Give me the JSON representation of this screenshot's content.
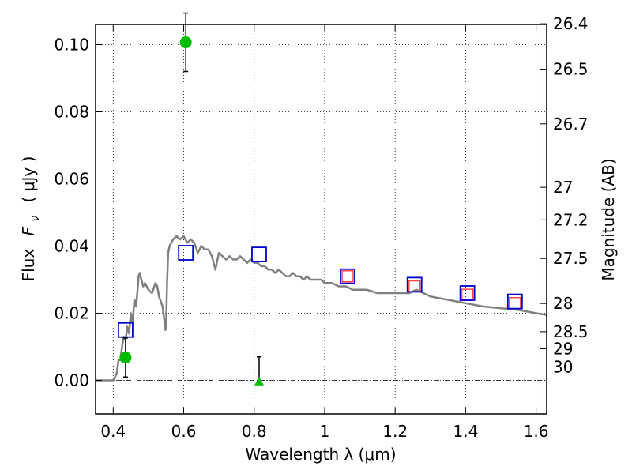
{
  "chart_data": {
    "type": "scatter",
    "xlabel": "Wavelength  λ (μm)",
    "ylabel_left": "Flux",
    "ylabel_left_symbol": "F",
    "ylabel_left_subscript": "ν",
    "ylabel_left_units": "( μJy )",
    "ylabel_right": "Magnitude (AB)",
    "xlim": [
      0.35,
      1.63
    ],
    "ylim": [
      -0.01,
      0.106
    ],
    "grid": true,
    "x_ticks": [
      {
        "value": 0.4,
        "label": "0.4"
      },
      {
        "value": 0.6,
        "label": "0.6"
      },
      {
        "value": 0.8,
        "label": "0.8"
      },
      {
        "value": 1.0,
        "label": "1"
      },
      {
        "value": 1.2,
        "label": "1.2"
      },
      {
        "value": 1.4,
        "label": "1.4"
      },
      {
        "value": 1.6,
        "label": "1.6"
      }
    ],
    "y_ticks": [
      {
        "value": 0.0,
        "label": "0.00"
      },
      {
        "value": 0.02,
        "label": "0.02"
      },
      {
        "value": 0.04,
        "label": "0.04"
      },
      {
        "value": 0.06,
        "label": "0.06"
      },
      {
        "value": 0.08,
        "label": "0.08"
      },
      {
        "value": 0.1,
        "label": "0.10"
      }
    ],
    "right_ticks": [
      {
        "flux": 0.1062,
        "label": "26.4"
      },
      {
        "flux": 0.0927,
        "label": "26.5"
      },
      {
        "flux": 0.0764,
        "label": "26.7"
      },
      {
        "flux": 0.0575,
        "label": "27"
      },
      {
        "flux": 0.0478,
        "label": "27.2"
      },
      {
        "flux": 0.0363,
        "label": "27.5"
      },
      {
        "flux": 0.0229,
        "label": "28"
      },
      {
        "flux": 0.0145,
        "label": "28.5"
      },
      {
        "flux": 0.0094,
        "label": "29"
      },
      {
        "flux": 0.004,
        "label": "30"
      }
    ],
    "sed_model": {
      "color": "#808080",
      "points": [
        [
          0.35,
          0.0
        ],
        [
          0.4,
          0.0
        ],
        [
          0.41,
          0.002
        ],
        [
          0.415,
          0.006
        ],
        [
          0.42,
          0.006
        ],
        [
          0.425,
          0.01
        ],
        [
          0.43,
          0.013
        ],
        [
          0.435,
          0.012
        ],
        [
          0.44,
          0.016
        ],
        [
          0.445,
          0.014
        ],
        [
          0.45,
          0.02
        ],
        [
          0.455,
          0.017
        ],
        [
          0.46,
          0.024
        ],
        [
          0.465,
          0.022
        ],
        [
          0.47,
          0.028
        ],
        [
          0.472,
          0.031
        ],
        [
          0.475,
          0.032
        ],
        [
          0.48,
          0.03
        ],
        [
          0.485,
          0.028
        ],
        [
          0.49,
          0.029
        ],
        [
          0.5,
          0.027
        ],
        [
          0.51,
          0.026
        ],
        [
          0.52,
          0.029
        ],
        [
          0.525,
          0.028
        ],
        [
          0.53,
          0.025
        ],
        [
          0.54,
          0.022
        ],
        [
          0.545,
          0.018
        ],
        [
          0.548,
          0.015
        ],
        [
          0.55,
          0.016
        ],
        [
          0.553,
          0.03
        ],
        [
          0.556,
          0.038
        ],
        [
          0.56,
          0.04
        ],
        [
          0.57,
          0.042
        ],
        [
          0.58,
          0.043
        ],
        [
          0.59,
          0.042
        ],
        [
          0.6,
          0.043
        ],
        [
          0.61,
          0.041
        ],
        [
          0.62,
          0.042
        ],
        [
          0.63,
          0.041
        ],
        [
          0.64,
          0.038
        ],
        [
          0.65,
          0.04
        ],
        [
          0.66,
          0.039
        ],
        [
          0.67,
          0.039
        ],
        [
          0.68,
          0.037
        ],
        [
          0.69,
          0.033
        ],
        [
          0.7,
          0.038
        ],
        [
          0.71,
          0.037
        ],
        [
          0.72,
          0.036
        ],
        [
          0.73,
          0.037
        ],
        [
          0.74,
          0.036
        ],
        [
          0.75,
          0.036
        ],
        [
          0.76,
          0.037
        ],
        [
          0.77,
          0.036
        ],
        [
          0.78,
          0.035
        ],
        [
          0.79,
          0.036
        ],
        [
          0.8,
          0.035
        ],
        [
          0.81,
          0.035
        ],
        [
          0.82,
          0.034
        ],
        [
          0.83,
          0.034
        ],
        [
          0.84,
          0.033
        ],
        [
          0.85,
          0.033
        ],
        [
          0.86,
          0.032
        ],
        [
          0.87,
          0.033
        ],
        [
          0.88,
          0.032
        ],
        [
          0.89,
          0.031
        ],
        [
          0.9,
          0.031
        ],
        [
          0.91,
          0.032
        ],
        [
          0.92,
          0.031
        ],
        [
          0.93,
          0.031
        ],
        [
          0.94,
          0.03
        ],
        [
          0.95,
          0.031
        ],
        [
          0.96,
          0.03
        ],
        [
          0.97,
          0.03
        ],
        [
          0.98,
          0.03
        ],
        [
          0.99,
          0.03
        ],
        [
          1.0,
          0.029
        ],
        [
          1.02,
          0.029
        ],
        [
          1.04,
          0.028
        ],
        [
          1.06,
          0.028
        ],
        [
          1.08,
          0.027
        ],
        [
          1.1,
          0.027
        ],
        [
          1.12,
          0.027
        ],
        [
          1.15,
          0.026
        ],
        [
          1.18,
          0.026
        ],
        [
          1.2,
          0.026
        ],
        [
          1.22,
          0.026
        ],
        [
          1.24,
          0.026
        ],
        [
          1.26,
          0.027
        ],
        [
          1.28,
          0.026
        ],
        [
          1.3,
          0.025
        ],
        [
          1.35,
          0.024
        ],
        [
          1.4,
          0.023
        ],
        [
          1.45,
          0.022
        ],
        [
          1.5,
          0.0215
        ],
        [
          1.55,
          0.021
        ],
        [
          1.6,
          0.02
        ],
        [
          1.63,
          0.0195
        ]
      ]
    },
    "model_photometry": {
      "marker": "square",
      "color": "#0000cc",
      "points": [
        {
          "x": 0.435,
          "y": 0.015
        },
        {
          "x": 0.606,
          "y": 0.038
        },
        {
          "x": 0.814,
          "y": 0.0375
        },
        {
          "x": 1.065,
          "y": 0.031
        },
        {
          "x": 1.255,
          "y": 0.0285
        },
        {
          "x": 1.405,
          "y": 0.026
        },
        {
          "x": 1.54,
          "y": 0.0235
        }
      ]
    },
    "observed_photometry": {
      "marker": "square",
      "color": "#ff4444",
      "points": [
        {
          "x": 1.065,
          "y": 0.031
        },
        {
          "x": 1.255,
          "y": 0.028
        },
        {
          "x": 1.405,
          "y": 0.0255
        },
        {
          "x": 1.54,
          "y": 0.023
        }
      ]
    },
    "upper_limit_points": {
      "color": "#00bb00",
      "points": [
        {
          "x": 0.435,
          "y": 0.0068,
          "yerr_low": 0.0058,
          "yerr_high": 0.0058,
          "marker": "circle"
        },
        {
          "x": 0.606,
          "y": 0.1007,
          "yerr_low": 0.0087,
          "yerr_high": 0.0087,
          "marker": "circle"
        },
        {
          "x": 0.814,
          "y": -0.0003,
          "yerr_low": 0.0,
          "yerr_high": 0.0073,
          "marker": "triangle"
        }
      ]
    },
    "zero_line": {
      "y": 0.0,
      "style": "dash-dot"
    }
  }
}
